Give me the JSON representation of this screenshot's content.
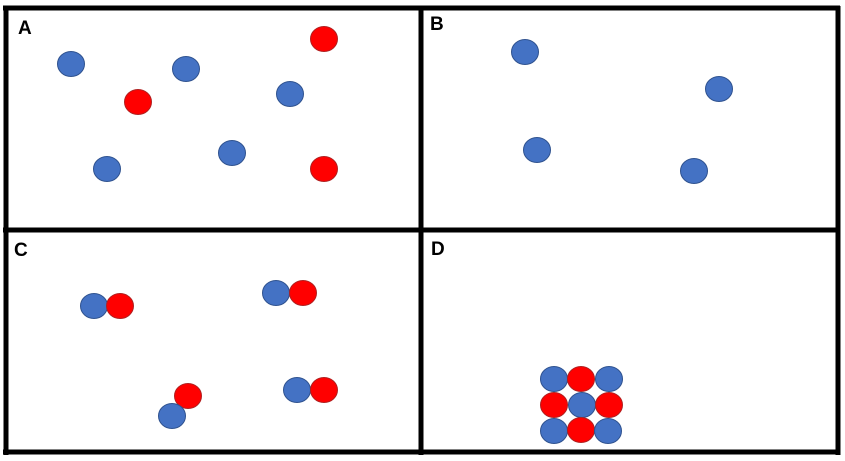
{
  "colors": {
    "blue": "#4472c4",
    "blue_stroke": "#2f528f",
    "red": "#ff0000",
    "red_stroke": "#b02020",
    "frame": "#000000"
  },
  "panels": [
    {
      "label": "A",
      "particles": [
        {
          "color": "blue"
        },
        {
          "color": "blue"
        },
        {
          "color": "blue"
        },
        {
          "color": "blue"
        },
        {
          "color": "blue"
        },
        {
          "color": "red"
        },
        {
          "color": "red"
        },
        {
          "color": "red"
        }
      ]
    },
    {
      "label": "B",
      "particles": [
        {
          "color": "blue"
        },
        {
          "color": "blue"
        },
        {
          "color": "blue"
        },
        {
          "color": "blue"
        }
      ]
    },
    {
      "label": "C",
      "particles": [
        {
          "color": "blue"
        },
        {
          "color": "red"
        },
        {
          "color": "blue"
        },
        {
          "color": "red"
        },
        {
          "color": "red"
        },
        {
          "color": "blue"
        },
        {
          "color": "blue"
        },
        {
          "color": "red"
        }
      ]
    },
    {
      "label": "D",
      "particles": [
        {
          "color": "blue"
        },
        {
          "color": "red"
        },
        {
          "color": "blue"
        },
        {
          "color": "red"
        },
        {
          "color": "blue"
        },
        {
          "color": "red"
        },
        {
          "color": "blue"
        },
        {
          "color": "red"
        },
        {
          "color": "blue"
        }
      ]
    }
  ]
}
